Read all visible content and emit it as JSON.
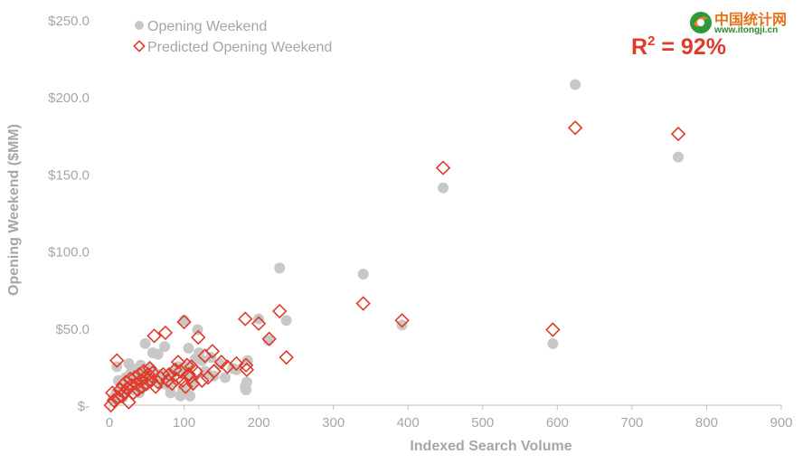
{
  "watermark": {
    "title": "中国统计网",
    "url": "www.itongji.cn",
    "logo_icon": "itongji-logo"
  },
  "annotation": {
    "r2_prefix": "R",
    "r2_sup": "2",
    "r2_suffix": " = 92%",
    "color": "#e03a2b"
  },
  "chart_data": {
    "type": "scatter",
    "xlabel": "Indexed Search Volume",
    "ylabel": "Opening Weekend ($MM)",
    "xlim": [
      0,
      900
    ],
    "ylim": [
      0,
      250
    ],
    "x_ticks": [
      0,
      100,
      200,
      300,
      400,
      500,
      600,
      700,
      800,
      900
    ],
    "x_tick_labels": [
      "0",
      "100",
      "200",
      "300",
      "400",
      "500",
      "600",
      "700",
      "800",
      "900"
    ],
    "y_ticks": [
      0,
      50,
      100,
      150,
      200,
      250
    ],
    "y_tick_labels": [
      "$-",
      "$50.0",
      "$100.0",
      "$150.0",
      "$200.0",
      "$250.0"
    ],
    "grid": false,
    "legend_position": "top-left",
    "series": [
      {
        "name": "Opening Weekend",
        "marker": "circle",
        "color": "#c8c8c8",
        "points": [
          [
            5,
            4
          ],
          [
            8,
            7
          ],
          [
            10,
            25
          ],
          [
            12,
            16
          ],
          [
            14,
            9
          ],
          [
            16,
            13
          ],
          [
            18,
            5
          ],
          [
            20,
            8
          ],
          [
            22,
            18
          ],
          [
            24,
            12
          ],
          [
            26,
            27
          ],
          [
            28,
            20
          ],
          [
            30,
            24
          ],
          [
            32,
            10
          ],
          [
            34,
            15
          ],
          [
            36,
            21
          ],
          [
            38,
            19
          ],
          [
            40,
            8
          ],
          [
            42,
            26
          ],
          [
            44,
            23
          ],
          [
            46,
            12
          ],
          [
            48,
            40
          ],
          [
            50,
            16
          ],
          [
            52,
            17
          ],
          [
            55,
            24
          ],
          [
            58,
            34
          ],
          [
            60,
            21
          ],
          [
            62,
            18
          ],
          [
            65,
            33
          ],
          [
            68,
            20
          ],
          [
            70,
            14
          ],
          [
            74,
            38
          ],
          [
            78,
            13
          ],
          [
            80,
            19
          ],
          [
            82,
            8
          ],
          [
            85,
            15
          ],
          [
            88,
            22
          ],
          [
            90,
            24
          ],
          [
            92,
            25
          ],
          [
            95,
            6
          ],
          [
            98,
            10
          ],
          [
            100,
            55
          ],
          [
            102,
            20
          ],
          [
            104,
            25
          ],
          [
            106,
            37
          ],
          [
            108,
            6
          ],
          [
            110,
            14
          ],
          [
            112,
            17
          ],
          [
            115,
            30
          ],
          [
            118,
            49
          ],
          [
            120,
            34
          ],
          [
            124,
            29
          ],
          [
            128,
            22
          ],
          [
            132,
            20
          ],
          [
            136,
            31
          ],
          [
            140,
            19
          ],
          [
            148,
            27
          ],
          [
            155,
            18
          ],
          [
            165,
            24
          ],
          [
            170,
            23
          ],
          [
            182,
            12
          ],
          [
            183,
            10
          ],
          [
            184,
            15
          ],
          [
            185,
            29
          ],
          [
            200,
            56
          ],
          [
            213,
            42
          ],
          [
            228,
            89
          ],
          [
            237,
            55
          ],
          [
            340,
            85
          ],
          [
            392,
            52
          ],
          [
            447,
            141
          ],
          [
            594,
            40
          ],
          [
            624,
            208
          ],
          [
            762,
            161
          ]
        ]
      },
      {
        "name": "Predicted Opening Weekend",
        "marker": "diamond",
        "color": "#e03a2b",
        "points": [
          [
            2,
            0
          ],
          [
            4,
            8
          ],
          [
            6,
            3
          ],
          [
            10,
            29
          ],
          [
            12,
            5
          ],
          [
            14,
            10
          ],
          [
            16,
            6
          ],
          [
            18,
            13
          ],
          [
            20,
            8
          ],
          [
            22,
            15
          ],
          [
            24,
            11
          ],
          [
            26,
            2
          ],
          [
            28,
            17
          ],
          [
            30,
            13
          ],
          [
            32,
            8
          ],
          [
            34,
            18
          ],
          [
            36,
            14
          ],
          [
            38,
            10
          ],
          [
            40,
            20
          ],
          [
            42,
            16
          ],
          [
            44,
            12
          ],
          [
            46,
            22
          ],
          [
            48,
            18
          ],
          [
            50,
            14
          ],
          [
            52,
            20
          ],
          [
            54,
            24
          ],
          [
            56,
            16
          ],
          [
            58,
            21
          ],
          [
            60,
            45
          ],
          [
            62,
            12
          ],
          [
            65,
            15
          ],
          [
            68,
            18
          ],
          [
            72,
            20
          ],
          [
            75,
            47
          ],
          [
            78,
            16
          ],
          [
            80,
            20
          ],
          [
            84,
            14
          ],
          [
            88,
            23
          ],
          [
            90,
            17
          ],
          [
            92,
            28
          ],
          [
            95,
            22
          ],
          [
            98,
            16
          ],
          [
            100,
            54
          ],
          [
            102,
            12
          ],
          [
            104,
            26
          ],
          [
            106,
            20
          ],
          [
            108,
            18
          ],
          [
            110,
            25
          ],
          [
            112,
            14
          ],
          [
            116,
            22
          ],
          [
            119,
            44
          ],
          [
            124,
            16
          ],
          [
            128,
            32
          ],
          [
            132,
            18
          ],
          [
            138,
            35
          ],
          [
            140,
            22
          ],
          [
            150,
            28
          ],
          [
            158,
            25
          ],
          [
            170,
            27
          ],
          [
            182,
            56
          ],
          [
            183,
            26
          ],
          [
            184,
            23
          ],
          [
            200,
            53
          ],
          [
            214,
            43
          ],
          [
            228,
            61
          ],
          [
            237,
            31
          ],
          [
            340,
            66
          ],
          [
            392,
            55
          ],
          [
            447,
            154
          ],
          [
            594,
            49
          ],
          [
            624,
            180
          ],
          [
            762,
            176
          ]
        ]
      }
    ]
  }
}
